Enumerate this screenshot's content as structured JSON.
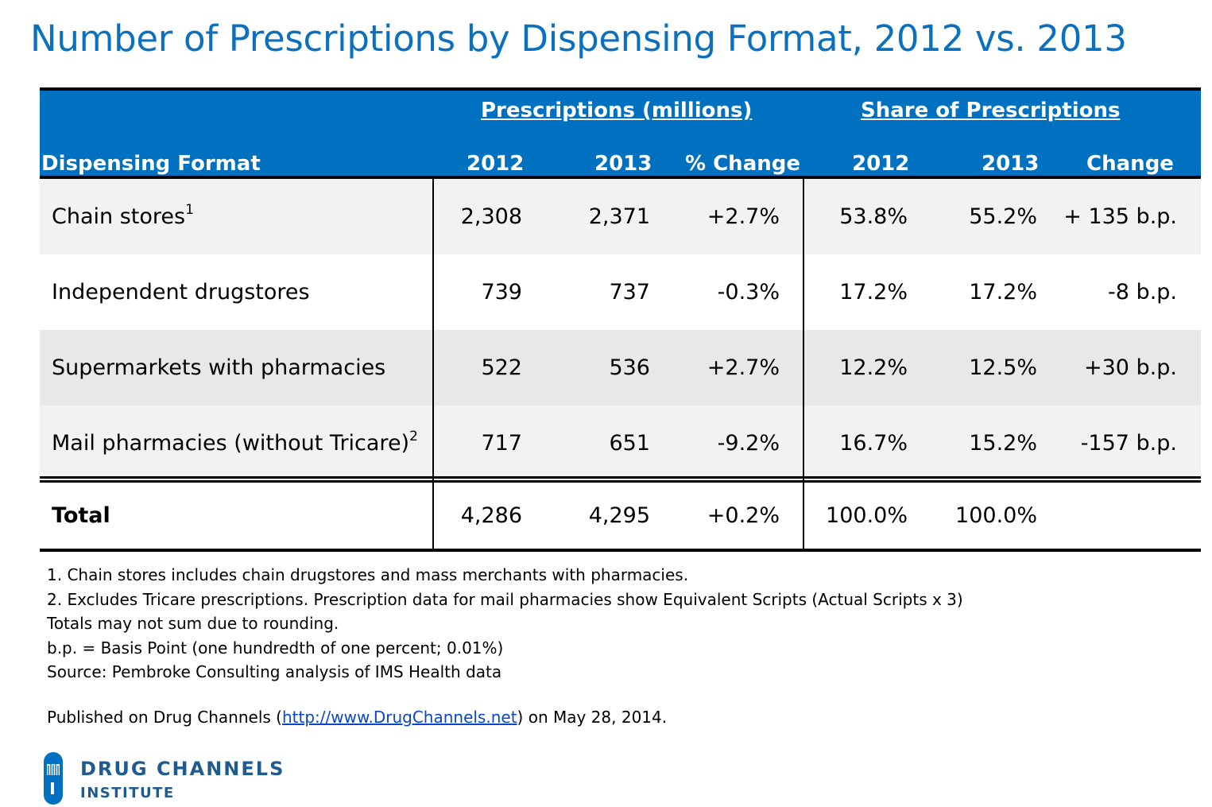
{
  "title": "Number of Prescriptions by Dispensing Format, 2012 vs. 2013",
  "chart_data": {
    "type": "table",
    "title": "Number of Prescriptions by Dispensing Format, 2012 vs. 2013",
    "group_headers": [
      "Prescriptions (millions)",
      "Share of Prescriptions"
    ],
    "columns": [
      "Dispensing Format",
      "2012",
      "2013",
      "% Change",
      "2012",
      "2013",
      "Change"
    ],
    "rows": [
      {
        "label": "Chain stores",
        "sup": "1",
        "values": [
          "2,308",
          "2,371",
          "+2.7%",
          "53.8%",
          "55.2%",
          "+ 135 b.p."
        ]
      },
      {
        "label": "Independent drugstores",
        "sup": "",
        "values": [
          "739",
          "737",
          "-0.3%",
          "17.2%",
          "17.2%",
          "-8 b.p."
        ]
      },
      {
        "label": "Supermarkets with pharmacies",
        "sup": "",
        "values": [
          "522",
          "536",
          "+2.7%",
          "12.2%",
          "12.5%",
          "+30 b.p."
        ]
      },
      {
        "label": "Mail pharmacies (without Tricare)",
        "sup": "2",
        "values": [
          "717",
          "651",
          "-9.2%",
          "16.7%",
          "15.2%",
          "-157 b.p."
        ]
      }
    ],
    "total": {
      "label": "Total",
      "values": [
        "4,286",
        "4,295",
        "+0.2%",
        "100.0%",
        "100.0%",
        ""
      ]
    }
  },
  "notes": [
    "1. Chain stores includes chain drugstores and mass merchants with pharmacies.",
    "2. Excludes Tricare prescriptions. Prescription data for mail pharmacies show Equivalent Scripts (Actual Scripts x 3)",
    "Totals may not sum due to rounding.",
    "b.p. = Basis Point (one hundredth of one percent; 0.01%)",
    "Source: Pembroke Consulting analysis of IMS Health data"
  ],
  "published": {
    "prefix": "Published on Drug Channels (",
    "link_text": "http://www.DrugChannels.net",
    "suffix": ") on May 28, 2014."
  },
  "logo": {
    "line1": "DRUG CHANNELS",
    "line2": "INSTITUTE"
  },
  "colors": {
    "header_blue": "#0070c0",
    "title_blue": "#0b70bd",
    "stripe_gray": "#f2f2f2",
    "stripe_gray_alt": "#e8e8e8",
    "logo_blue": "#1f5b8e"
  }
}
